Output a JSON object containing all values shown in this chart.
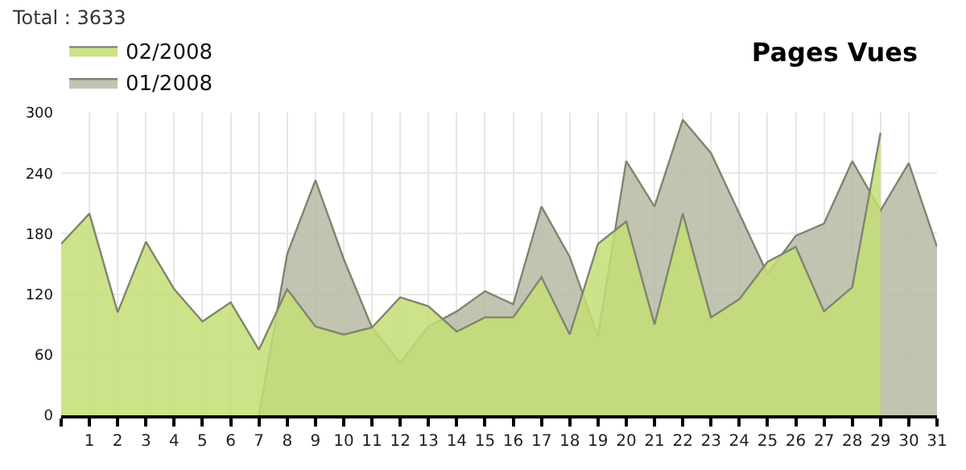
{
  "chart_data": {
    "type": "area",
    "title": "Pages Vues",
    "annotations": [
      "Total : 3633"
    ],
    "series": [
      {
        "name": "02/2008",
        "color": "#c3de74",
        "x": [
          0,
          1,
          2,
          3,
          4,
          5,
          6,
          7,
          8,
          9,
          10,
          11,
          12,
          13,
          14,
          15,
          16,
          17,
          18,
          19,
          20,
          21,
          22,
          23,
          24,
          25,
          26,
          27,
          28,
          29
        ],
        "values": [
          170,
          200,
          102,
          172,
          125,
          93,
          112,
          65,
          125,
          88,
          80,
          87,
          117,
          108,
          83,
          97,
          97,
          137,
          80,
          170,
          192,
          90,
          200,
          97,
          115,
          152,
          167,
          103,
          127,
          280
        ]
      },
      {
        "name": "01/2008",
        "color": "#b7baa5",
        "x": [
          7,
          8,
          9,
          10,
          11,
          12,
          13,
          14,
          15,
          16,
          17,
          18,
          19,
          20,
          21,
          22,
          23,
          24,
          25,
          26,
          27,
          28,
          29,
          30,
          31
        ],
        "values": [
          0,
          160,
          233,
          155,
          87,
          52,
          88,
          103,
          123,
          110,
          207,
          157,
          78,
          252,
          207,
          293,
          260,
          200,
          140,
          178,
          190,
          252,
          203,
          250,
          167
        ]
      }
    ],
    "xlim": [
      0,
      31
    ],
    "xticks": [
      {
        "value": 0,
        "label": null
      },
      1,
      2,
      3,
      4,
      5,
      6,
      7,
      8,
      9,
      10,
      11,
      12,
      13,
      14,
      15,
      16,
      17,
      18,
      19,
      20,
      21,
      22,
      23,
      24,
      25,
      26,
      27,
      28,
      29,
      30,
      31
    ],
    "ylim": [
      0,
      300
    ],
    "yticks": [
      0,
      60,
      120,
      180,
      240,
      300
    ],
    "grid": true,
    "legend": "top left"
  }
}
